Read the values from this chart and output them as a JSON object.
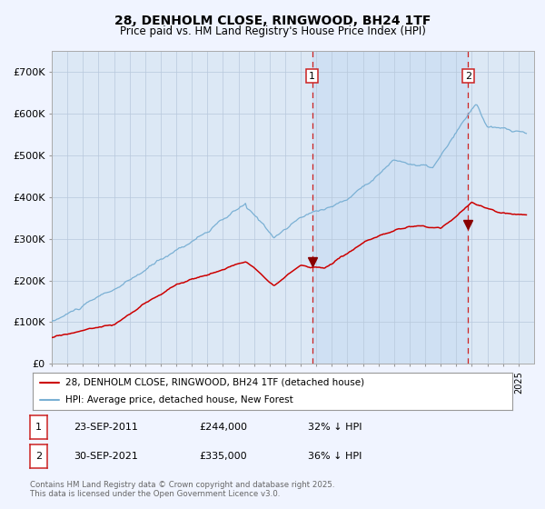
{
  "title": "28, DENHOLM CLOSE, RINGWOOD, BH24 1TF",
  "subtitle": "Price paid vs. HM Land Registry's House Price Index (HPI)",
  "background_color": "#f0f4ff",
  "plot_bg_color": "#dce8f5",
  "grid_color": "#b8c8dc",
  "hpi_color": "#7ab0d4",
  "price_color": "#cc0000",
  "sale1_x": 2011.73,
  "sale2_x": 2021.75,
  "sale1_price": 244000,
  "sale2_price": 335000,
  "sale1_label": "1",
  "sale2_label": "2",
  "legend_house": "28, DENHOLM CLOSE, RINGWOOD, BH24 1TF (detached house)",
  "legend_hpi": "HPI: Average price, detached house, New Forest",
  "label1_date": "23-SEP-2011",
  "label1_price": "£244,000",
  "label1_hpi": "32% ↓ HPI",
  "label2_date": "30-SEP-2021",
  "label2_price": "£335,000",
  "label2_hpi": "36% ↓ HPI",
  "footer": "Contains HM Land Registry data © Crown copyright and database right 2025.\nThis data is licensed under the Open Government Licence v3.0.",
  "ylim": [
    0,
    750000
  ],
  "xlim": [
    1995,
    2026
  ]
}
